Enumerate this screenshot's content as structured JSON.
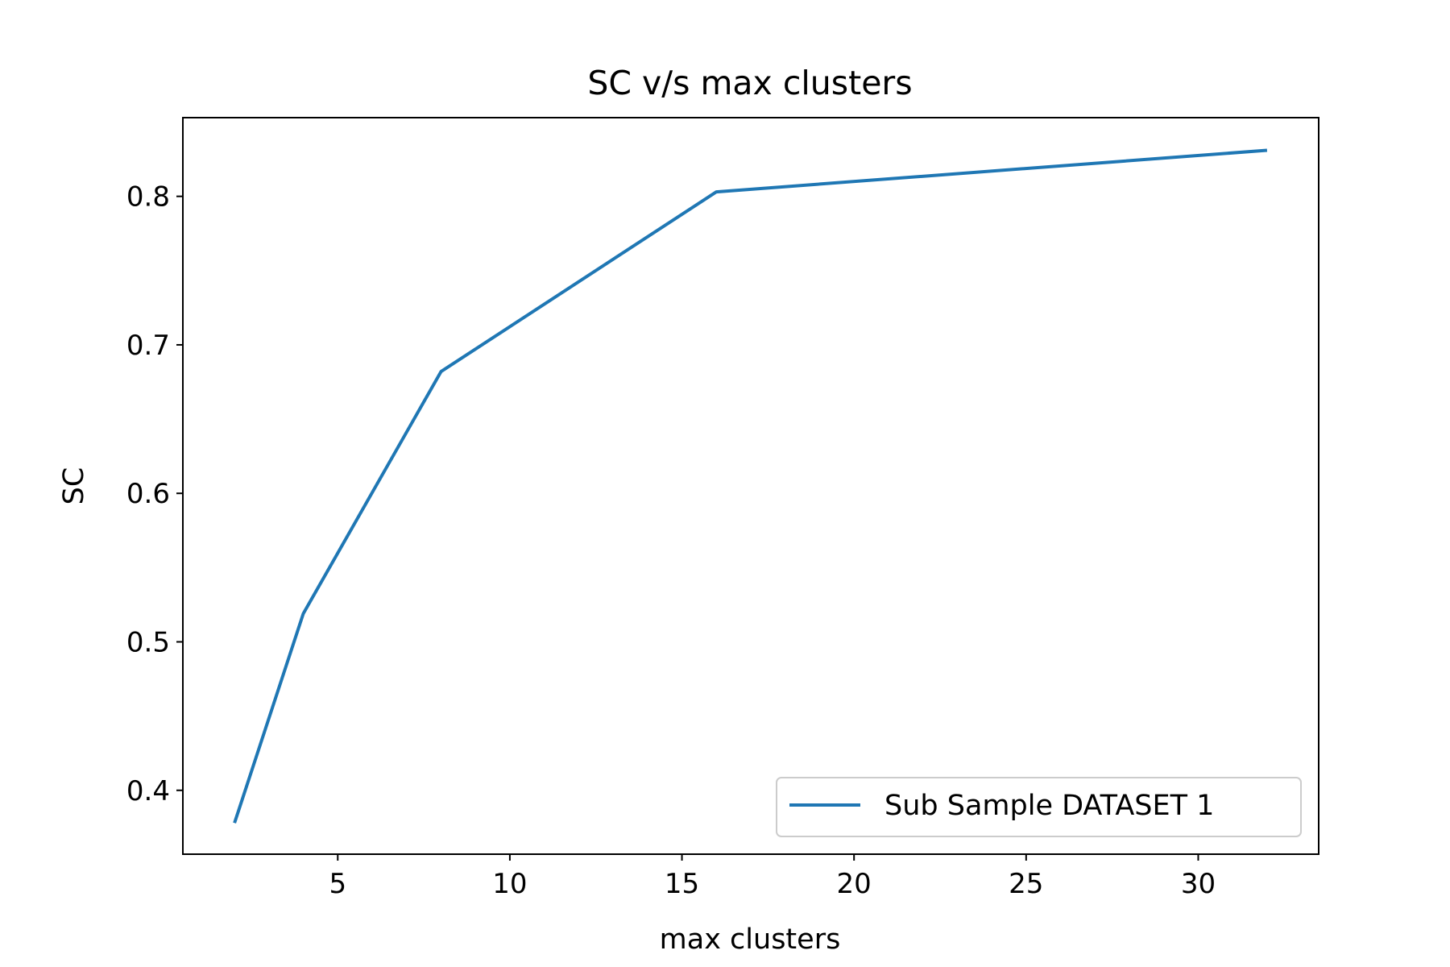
{
  "chart_data": {
    "type": "line",
    "title": "SC v/s max clusters",
    "xlabel": "max clusters",
    "ylabel": "SC",
    "xlim": [
      0.5,
      33.5
    ],
    "ylim": [
      0.357,
      0.853
    ],
    "x_ticks": [
      5,
      10,
      15,
      20,
      25,
      30
    ],
    "y_ticks": [
      0.4,
      0.5,
      0.6,
      0.7,
      0.8
    ],
    "x_tick_labels": [
      "5",
      "10",
      "15",
      "20",
      "25",
      "30"
    ],
    "y_tick_labels": [
      "0.4",
      "0.5",
      "0.6",
      "0.7",
      "0.8"
    ],
    "grid": false,
    "legend_position": "lower right",
    "series": [
      {
        "name": "Sub Sample DATASET 1",
        "color": "#1f77b4",
        "x": [
          2,
          4,
          8,
          16,
          32
        ],
        "y": [
          0.378,
          0.519,
          0.682,
          0.803,
          0.831
        ]
      }
    ]
  }
}
